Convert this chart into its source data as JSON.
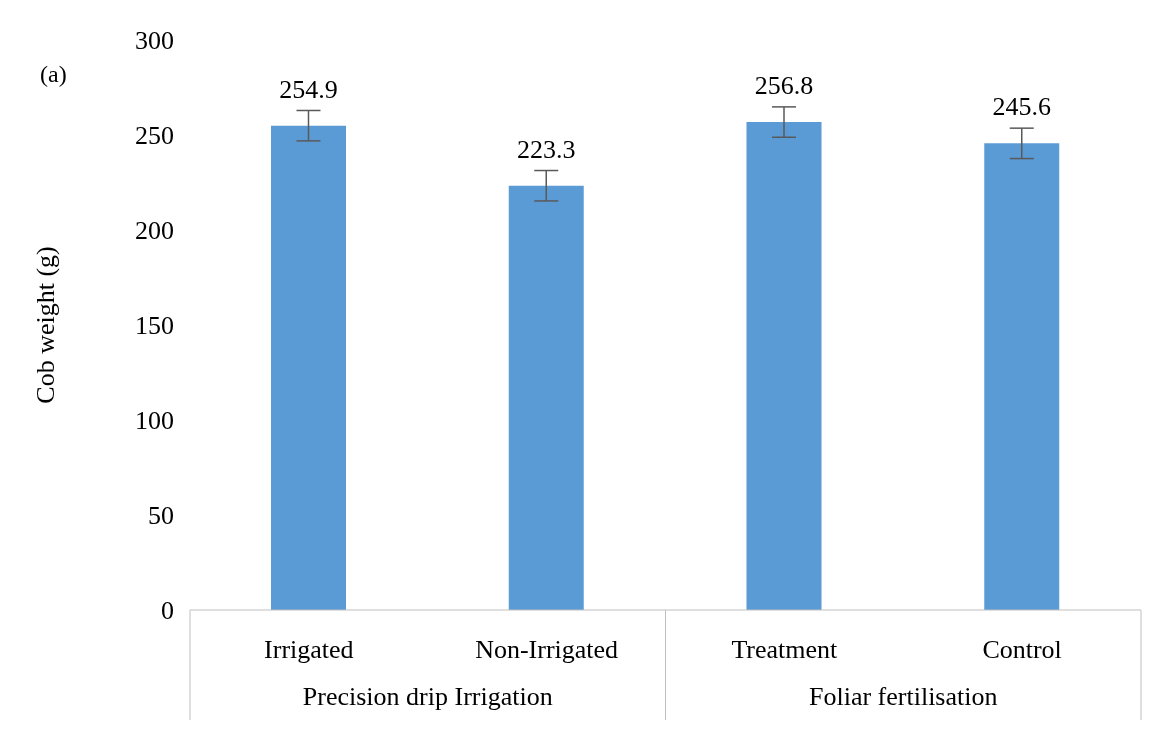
{
  "chart_data": {
    "type": "bar",
    "title": "(a)",
    "ylabel": "Cob weight (g)",
    "categories": [
      "Irrigated",
      "Non-Irrigated",
      "Treatment",
      "Control"
    ],
    "values": [
      254.9,
      223.3,
      256.8,
      245.6
    ],
    "errors": [
      8,
      8,
      8,
      8
    ],
    "color": "#5b9bd5",
    "ylim": [
      0,
      300
    ],
    "yticks": [
      0,
      50,
      100,
      150,
      200,
      250,
      300
    ],
    "grid": false,
    "legend": false,
    "data_labels": true,
    "annotations": [
      "Precision drip Irrigation",
      "Foliar fertilisation"
    ]
  }
}
